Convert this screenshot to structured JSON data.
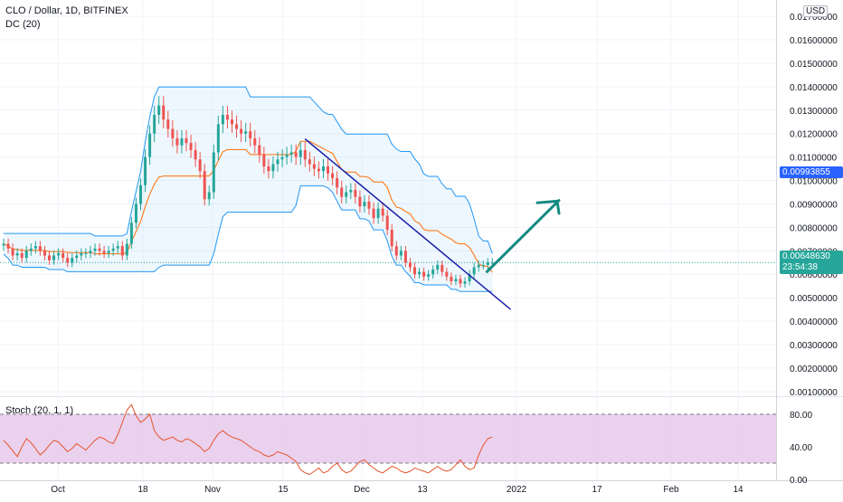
{
  "header": {
    "title": "CLO / Dollar, 1D, BITFINEX",
    "indicator_dc": "DC (20)",
    "indicator_stoch": "Stoch (20, 1, 1)",
    "currency_badge": "USD"
  },
  "price_tags": {
    "blue_value": "0.00993855",
    "current_value": "0.00648630",
    "countdown": "23:54:38"
  },
  "colors": {
    "up": "#26a69a",
    "down": "#ef5350",
    "dc_band": "#2196f3",
    "trendline": "#1a1fa8",
    "arrow": "#138a80",
    "stoch_bg": "#e1bee7",
    "stoch_line": "#e5542a"
  },
  "chart_data": [
    {
      "type": "candlestick",
      "title": "CLO / Dollar, 1D, BITFINEX",
      "y_ticks": [
        "0.00100000",
        "0.00200000",
        "0.00300000",
        "0.00400000",
        "0.00500000",
        "0.00600000",
        "0.00700000",
        "0.00800000",
        "0.00900000",
        "0.01000000",
        "0.01100000",
        "0.01200000",
        "0.01300000",
        "0.01400000",
        "0.01500000",
        "0.01600000",
        "0.01700000"
      ],
      "x_ticks": [
        "Oct",
        "18",
        "Nov",
        "15",
        "Dec",
        "13",
        "2022",
        "17",
        "Feb",
        "14"
      ],
      "ylim": [
        0.0008,
        0.0177
      ],
      "grid": true,
      "price_axis": "right",
      "series": [
        {
          "name": "CLO / Dollar",
          "close": [
            0.0073,
            0.0071,
            0.0068,
            0.0069,
            0.0067,
            0.007,
            0.0071,
            0.0072,
            0.007,
            0.0068,
            0.0066,
            0.0068,
            0.0069,
            0.0067,
            0.0065,
            0.0067,
            0.0068,
            0.0069,
            0.0069,
            0.007,
            0.0071,
            0.007,
            0.0069,
            0.007,
            0.0071,
            0.0072,
            0.0068,
            0.0073,
            0.0082,
            0.009,
            0.0098,
            0.011,
            0.012,
            0.0128,
            0.0132,
            0.0126,
            0.0122,
            0.0118,
            0.0115,
            0.0118,
            0.0116,
            0.0113,
            0.0109,
            0.0104,
            0.0092,
            0.0095,
            0.0112,
            0.0124,
            0.0128,
            0.0126,
            0.0124,
            0.0122,
            0.012,
            0.0121,
            0.0118,
            0.0115,
            0.0111,
            0.0106,
            0.0104,
            0.0107,
            0.0109,
            0.011,
            0.0111,
            0.0112,
            0.011,
            0.0113,
            0.0109,
            0.0107,
            0.0105,
            0.0104,
            0.0106,
            0.0103,
            0.0101,
            0.0097,
            0.0093,
            0.0095,
            0.0096,
            0.0093,
            0.0089,
            0.0091,
            0.0088,
            0.0084,
            0.0088,
            0.0085,
            0.0079,
            0.0072,
            0.0068,
            0.007,
            0.0065,
            0.0063,
            0.006,
            0.0061,
            0.0059,
            0.006,
            0.0062,
            0.0064,
            0.0061,
            0.0059,
            0.0057,
            0.0058,
            0.0056,
            0.0057,
            0.006,
            0.0063,
            0.0064,
            0.0064,
            0.0065,
            0.0065
          ]
        }
      ],
      "donchian": {
        "name": "DC (20)",
        "length": 20
      },
      "annotations": [
        "descending trendline",
        "upward arrow"
      ]
    },
    {
      "type": "line",
      "title": "Stoch (20, 1, 1)",
      "y_ticks": [
        "0.00",
        "40.00",
        "80.00"
      ],
      "ylim": [
        0,
        100
      ],
      "band": [
        20,
        80
      ],
      "series": [
        {
          "name": "Stoch",
          "values": [
            48,
            42,
            35,
            28,
            40,
            50,
            45,
            38,
            30,
            35,
            42,
            48,
            46,
            40,
            34,
            38,
            44,
            40,
            36,
            42,
            48,
            52,
            50,
            46,
            44,
            55,
            70,
            85,
            92,
            78,
            70,
            74,
            80,
            60,
            52,
            48,
            50,
            52,
            48,
            46,
            50,
            48,
            44,
            40,
            34,
            38,
            48,
            56,
            60,
            55,
            52,
            50,
            48,
            44,
            40,
            36,
            34,
            30,
            28,
            30,
            34,
            32,
            30,
            26,
            22,
            12,
            8,
            6,
            10,
            14,
            8,
            10,
            16,
            20,
            12,
            8,
            10,
            16,
            22,
            24,
            18,
            14,
            10,
            8,
            12,
            16,
            14,
            10,
            8,
            10,
            14,
            12,
            10,
            8,
            12,
            16,
            12,
            10,
            12,
            18,
            24,
            16,
            12,
            14,
            30,
            42,
            50,
            52
          ]
        }
      ]
    }
  ]
}
